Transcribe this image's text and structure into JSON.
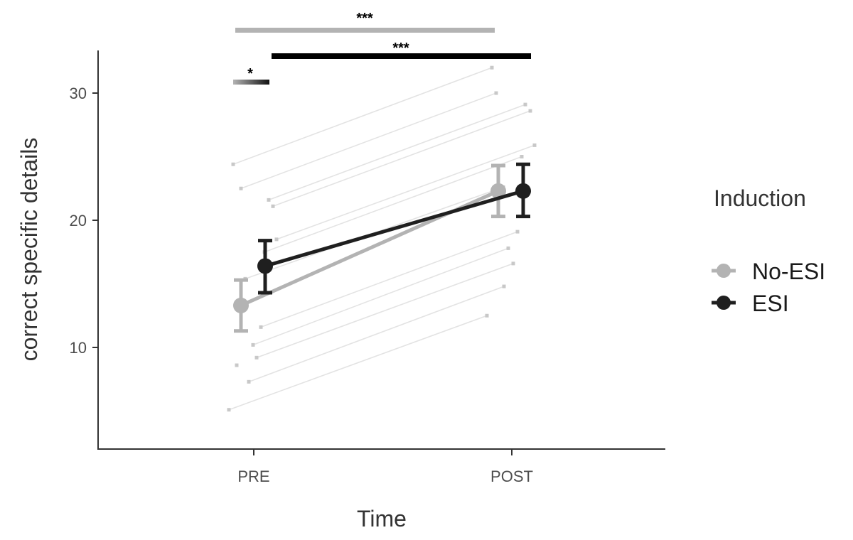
{
  "chart_data": {
    "type": "line",
    "title": "",
    "xlabel": "Time",
    "ylabel": "correct specific details",
    "categories": [
      "PRE",
      "POST"
    ],
    "yticks": [
      10,
      20,
      30
    ],
    "ylim": [
      2.8,
      33.4
    ],
    "grid": false,
    "legend": {
      "title": "Induction",
      "position": "right",
      "entries": [
        {
          "name": "No-ESI",
          "color": "#b3b3b3"
        },
        {
          "name": "ESI",
          "color": "#1f1f1f"
        }
      ]
    },
    "series": [
      {
        "name": "No-ESI",
        "color": "#b3b3b3",
        "values": [
          13.3,
          22.3
        ],
        "error": [
          [
            11.3,
            15.3
          ],
          [
            20.3,
            24.3
          ]
        ]
      },
      {
        "name": "ESI",
        "color": "#1f1f1f",
        "values": [
          16.4,
          22.3
        ],
        "error": [
          [
            14.3,
            18.4
          ],
          [
            20.3,
            24.4
          ]
        ]
      }
    ],
    "individual_lines": [
      {
        "pre": 24.4,
        "post": 32.0
      },
      {
        "pre": 22.5,
        "post": 30.0
      },
      {
        "pre": 21.6,
        "post": 29.1
      },
      {
        "pre": 21.1,
        "post": 28.6
      },
      {
        "pre": 18.5,
        "post": 25.9
      },
      {
        "pre": 17.5,
        "post": 25.0
      },
      {
        "pre": 15.4,
        "post": 22.6
      },
      {
        "pre": 11.6,
        "post": 19.1
      },
      {
        "pre": 10.2,
        "post": 17.8
      },
      {
        "pre": 9.2,
        "post": 16.6
      },
      {
        "pre": 7.3,
        "post": 14.8
      },
      {
        "pre": 5.1,
        "post": 12.5
      }
    ],
    "individual_points_unpaired": [
      8.6
    ],
    "annotations": [
      {
        "label": "***",
        "comparison": "No-ESI PRE vs POST",
        "color": "#b3b3b3"
      },
      {
        "label": "***",
        "comparison": "ESI PRE vs POST",
        "color": "#000000"
      },
      {
        "label": "*",
        "comparison": "No-ESI vs ESI at PRE",
        "color": "gradient grey-to-black"
      }
    ]
  },
  "axes": {
    "x_label": "Time",
    "y_label": "correct specific details",
    "x_ticks": [
      "PRE",
      "POST"
    ],
    "y_ticks": [
      "10",
      "20",
      "30"
    ]
  },
  "legend": {
    "title": "Induction",
    "items": [
      "No-ESI",
      "ESI"
    ]
  },
  "significance": {
    "no_esi_time": "***",
    "esi_time": "***",
    "pre_group": "*"
  }
}
